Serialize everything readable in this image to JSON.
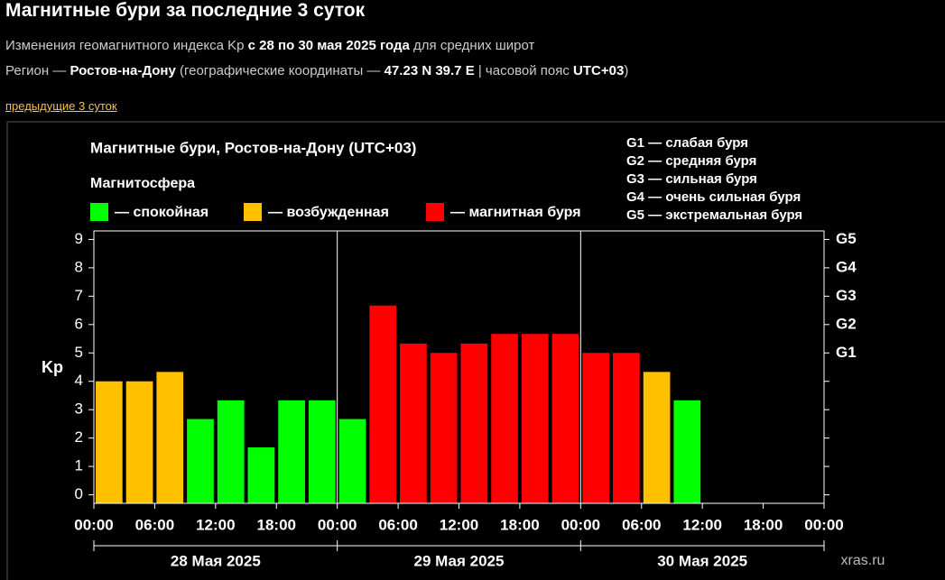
{
  "header": {
    "title": "Магнитные бури за последние 3 суток",
    "subtitle": [
      {
        "text": "Изменения геомагнитного индекса Kp ",
        "bold": false
      },
      {
        "text": "с 28 по 30 мая 2025 года",
        "bold": true
      },
      {
        "text": " для средних широт",
        "bold": false
      }
    ],
    "region": [
      {
        "text": "Регион — ",
        "bold": false
      },
      {
        "text": "Ростов-на-Дону",
        "bold": true
      },
      {
        "text": " (географические координаты — ",
        "bold": false
      },
      {
        "text": "47.23 N 39.7 E",
        "bold": true
      },
      {
        "text": " | часовой пояс ",
        "bold": false
      },
      {
        "text": "UTC+03",
        "bold": true
      },
      {
        "text": ")",
        "bold": false
      }
    ],
    "link": "предыдущие 3 суток"
  },
  "chart_data": {
    "type": "bar",
    "title": "Магнитные бури, Ростов-на-Дону (UTC+03)",
    "legend_title": "Магнитосфера",
    "legend": [
      {
        "name": "— спокойная",
        "color": "#00ff00"
      },
      {
        "name": "— возбужденная",
        "color": "#ffc000"
      },
      {
        "name": "— магнитная буря",
        "color": "#ff0000"
      }
    ],
    "scale_notes": [
      "G1 — слабая буря",
      "G2 — средняя буря",
      "G3 — сильная буря",
      "G4 — очень сильная буря",
      "G5 — экстремальная буря"
    ],
    "ylabel": "Kp",
    "x": [
      0,
      3,
      6,
      9,
      12,
      15,
      18,
      21,
      24,
      27,
      30,
      33,
      36,
      39,
      42,
      45,
      48,
      51,
      54,
      57,
      60,
      63,
      66,
      69
    ],
    "values": [
      4,
      4,
      4.33,
      2.67,
      3.33,
      1.67,
      3.33,
      3.33,
      2.67,
      6.67,
      5.33,
      5,
      5.33,
      5.67,
      5.67,
      5.67,
      5,
      5,
      4.33,
      3.33,
      null,
      null,
      null,
      null
    ],
    "bar_colors": [
      "#ffc000",
      "#ffc000",
      "#ffc000",
      "#00ff00",
      "#00ff00",
      "#00ff00",
      "#00ff00",
      "#00ff00",
      "#00ff00",
      "#ff0000",
      "#ff0000",
      "#ff0000",
      "#ff0000",
      "#ff0000",
      "#ff0000",
      "#ff0000",
      "#ff0000",
      "#ff0000",
      "#ffc000",
      "#00ff00",
      null,
      null,
      null,
      null
    ],
    "xlim": [
      0,
      72
    ],
    "xticks": [
      {
        "value": 0,
        "label": "00:00"
      },
      {
        "value": 6,
        "label": "06:00"
      },
      {
        "value": 12,
        "label": "12:00"
      },
      {
        "value": 18,
        "label": "18:00"
      },
      {
        "value": 24,
        "label": "00:00"
      },
      {
        "value": 30,
        "label": "06:00"
      },
      {
        "value": 36,
        "label": "12:00"
      },
      {
        "value": 42,
        "label": "18:00"
      },
      {
        "value": 48,
        "label": "00:00"
      },
      {
        "value": 54,
        "label": "06:00"
      },
      {
        "value": 60,
        "label": "12:00"
      },
      {
        "value": 66,
        "label": "18:00"
      },
      {
        "value": 72,
        "label": "00:00"
      }
    ],
    "days": [
      "28 Мая 2025",
      "29 Мая 2025",
      "30 Мая 2025"
    ],
    "ylim": [
      -0.3,
      9.3
    ],
    "yticks": [
      0,
      1,
      2,
      3,
      4,
      5,
      6,
      7,
      8,
      9
    ],
    "y2lim": [
      -0.3,
      9.3
    ],
    "y2ticks": [
      {
        "value": 5,
        "label": "G1"
      },
      {
        "value": 6,
        "label": "G2"
      },
      {
        "value": 7,
        "label": "G3"
      },
      {
        "value": 8,
        "label": "G4"
      },
      {
        "value": 9,
        "label": "G5"
      }
    ],
    "watermark": "xras.ru"
  }
}
